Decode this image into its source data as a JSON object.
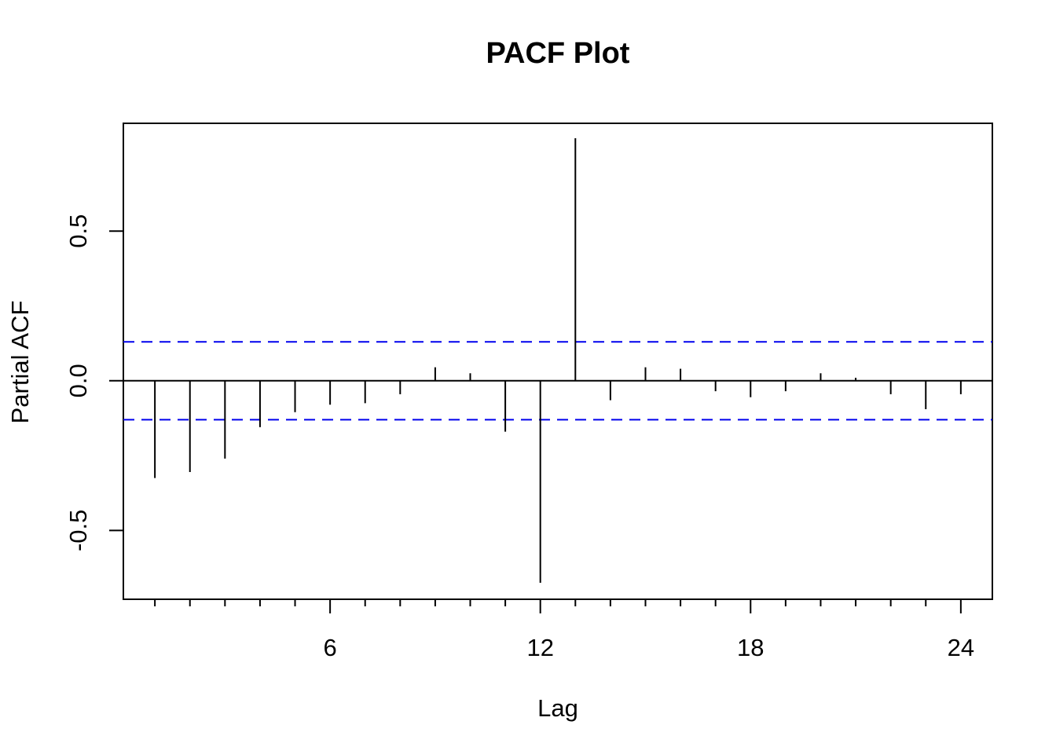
{
  "chart_data": {
    "type": "bar",
    "title": "PACF Plot",
    "xlabel": "Lag",
    "ylabel": "Partial ACF",
    "x": [
      1,
      2,
      3,
      4,
      5,
      6,
      7,
      8,
      9,
      10,
      11,
      12,
      13,
      14,
      15,
      16,
      17,
      18,
      19,
      20,
      21,
      22,
      23,
      24
    ],
    "values": [
      -0.325,
      -0.305,
      -0.26,
      -0.155,
      -0.105,
      -0.08,
      -0.075,
      -0.045,
      0.045,
      0.025,
      -0.17,
      -0.675,
      0.81,
      -0.065,
      0.045,
      0.04,
      -0.035,
      -0.055,
      -0.035,
      0.025,
      0.01,
      -0.045,
      -0.095,
      -0.045
    ],
    "confidence_limit": 0.13,
    "xlim": [
      0.1,
      24.9
    ],
    "ylim": [
      -0.73,
      0.86
    ],
    "x_ticks": [
      6,
      12,
      18,
      24
    ],
    "x_tick_labels": [
      "6",
      "12",
      "18",
      "24"
    ],
    "y_ticks": [
      -0.5,
      0.0,
      0.5
    ],
    "y_tick_labels": [
      "-0.5",
      "0.0",
      "0.5"
    ],
    "grid": false,
    "colors": {
      "bars": "#000000",
      "confidence": "#0000ee",
      "axis": "#000000"
    }
  }
}
